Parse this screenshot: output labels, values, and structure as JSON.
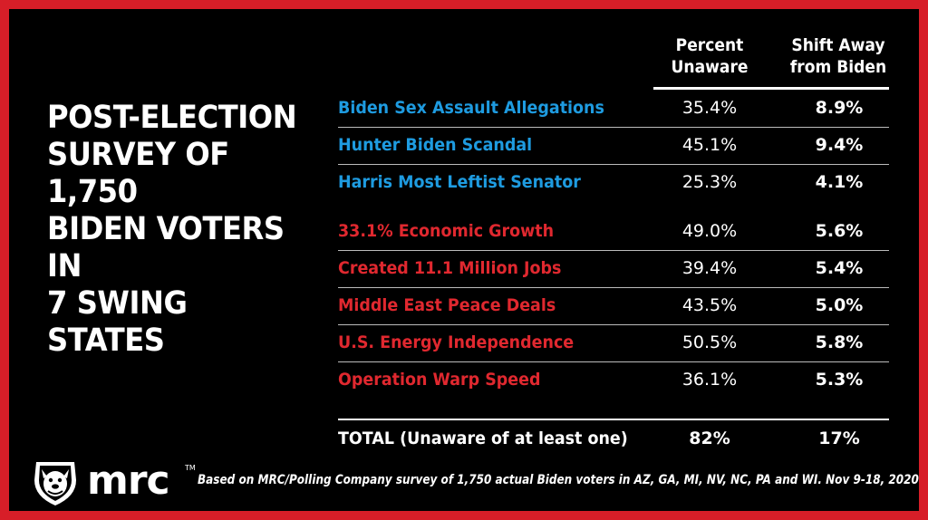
{
  "headline": [
    "POST-ELECTION",
    "SURVEY OF 1,750",
    "BIDEN VOTERS IN",
    "7 SWING STATES"
  ],
  "chart_data": {
    "type": "table",
    "columns": [
      {
        "line1": "Percent",
        "line2": "Unaware"
      },
      {
        "line1": "Shift Away",
        "line2": "from Biden"
      }
    ],
    "rows": [
      {
        "label": "Biden Sex Assault Allegations",
        "unaware": "35.4%",
        "shift": "8.9%",
        "group": "blue",
        "color": "#1e9be0"
      },
      {
        "label": "Hunter Biden Scandal",
        "unaware": "45.1%",
        "shift": "9.4%",
        "group": "blue",
        "color": "#1e9be0"
      },
      {
        "label": "Harris Most Leftist Senator",
        "unaware": "25.3%",
        "shift": "4.1%",
        "group": "blue",
        "color": "#1e9be0"
      },
      {
        "label": "33.1% Economic Growth",
        "unaware": "49.0%",
        "shift": "5.6%",
        "group": "red",
        "color": "#e0282f"
      },
      {
        "label": "Created 11.1 Million Jobs",
        "unaware": "39.4%",
        "shift": "5.4%",
        "group": "red",
        "color": "#e0282f"
      },
      {
        "label": "Middle East Peace Deals",
        "unaware": "43.5%",
        "shift": "5.0%",
        "group": "red",
        "color": "#e0282f"
      },
      {
        "label": "U.S. Energy Independence",
        "unaware": "50.5%",
        "shift": "5.8%",
        "group": "red",
        "color": "#e0282f"
      },
      {
        "label": "Operation Warp Speed",
        "unaware": "36.1%",
        "shift": "5.3%",
        "group": "red",
        "color": "#e0282f"
      }
    ],
    "total": {
      "label_bold": "TOTAL",
      "label_rest": " (Unaware of at least one)",
      "unaware": "82%",
      "shift": "17%"
    }
  },
  "logo": {
    "text": "mrc",
    "tm": "TM",
    "icon": "bulldog-icon"
  },
  "source": "Based on MRC/Polling Company survey of 1,750 actual Biden voters in AZ, GA, MI, NV, NC, PA and WI. Nov 9-18, 2020",
  "colors": {
    "border": "#d71e28",
    "background": "#000000",
    "blue": "#1e9be0",
    "red": "#e0282f"
  }
}
